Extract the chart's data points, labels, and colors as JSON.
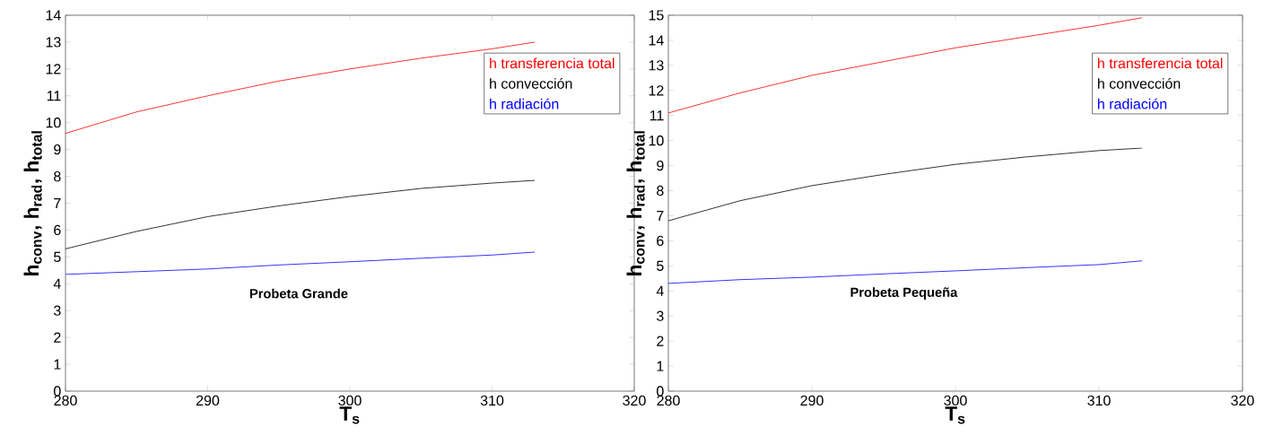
{
  "chart_data": [
    {
      "type": "line",
      "xlabel": "T$_{s}$",
      "ylabel": "h$_{conv}$,  h$_{rad}$,  h$_{total}$",
      "annotations": [
        "Probeta Grande"
      ],
      "x": [
        280,
        285,
        290,
        295,
        300,
        305,
        310,
        313
      ],
      "xlim": [
        280,
        320
      ],
      "ylim": [
        0,
        14
      ],
      "xticks": [
        280,
        290,
        300,
        310,
        320
      ],
      "yticks": [
        0,
        1,
        2,
        3,
        4,
        5,
        6,
        7,
        8,
        9,
        10,
        11,
        12,
        13,
        14
      ],
      "legend": "top right",
      "series": [
        {
          "name": "h transferencia total",
          "color": "#ff0000",
          "values": [
            9.6,
            10.4,
            11.0,
            11.55,
            12.0,
            12.4,
            12.75,
            13.0
          ]
        },
        {
          "name": "h convección",
          "color": "#000000",
          "values": [
            5.3,
            5.95,
            6.5,
            6.9,
            7.25,
            7.55,
            7.75,
            7.85
          ]
        },
        {
          "name": "h radiación",
          "color": "#0000ff",
          "values": [
            4.35,
            4.45,
            4.55,
            4.7,
            4.82,
            4.95,
            5.07,
            5.18
          ]
        }
      ]
    },
    {
      "type": "line",
      "xlabel": "T$_{s}$",
      "ylabel": "h$_{conv}$,  h$_{rad}$,  h$_{total}$",
      "annotations": [
        "Probeta Pequeña"
      ],
      "x": [
        280,
        285,
        290,
        295,
        300,
        305,
        310,
        313
      ],
      "xlim": [
        280,
        320
      ],
      "ylim": [
        0,
        15
      ],
      "xticks": [
        280,
        290,
        300,
        310,
        320
      ],
      "yticks": [
        0,
        1,
        2,
        3,
        4,
        5,
        6,
        7,
        8,
        9,
        10,
        11,
        12,
        13,
        14,
        15
      ],
      "legend": "top right",
      "series": [
        {
          "name": "h transferencia total",
          "color": "#ff0000",
          "values": [
            11.1,
            11.9,
            12.6,
            13.15,
            13.7,
            14.15,
            14.6,
            14.9
          ]
        },
        {
          "name": "h convección",
          "color": "#000000",
          "values": [
            6.8,
            7.6,
            8.2,
            8.65,
            9.05,
            9.35,
            9.6,
            9.7
          ]
        },
        {
          "name": "h radiación",
          "color": "#0000ff",
          "values": [
            4.3,
            4.45,
            4.55,
            4.68,
            4.8,
            4.93,
            5.05,
            5.2
          ]
        }
      ]
    }
  ]
}
